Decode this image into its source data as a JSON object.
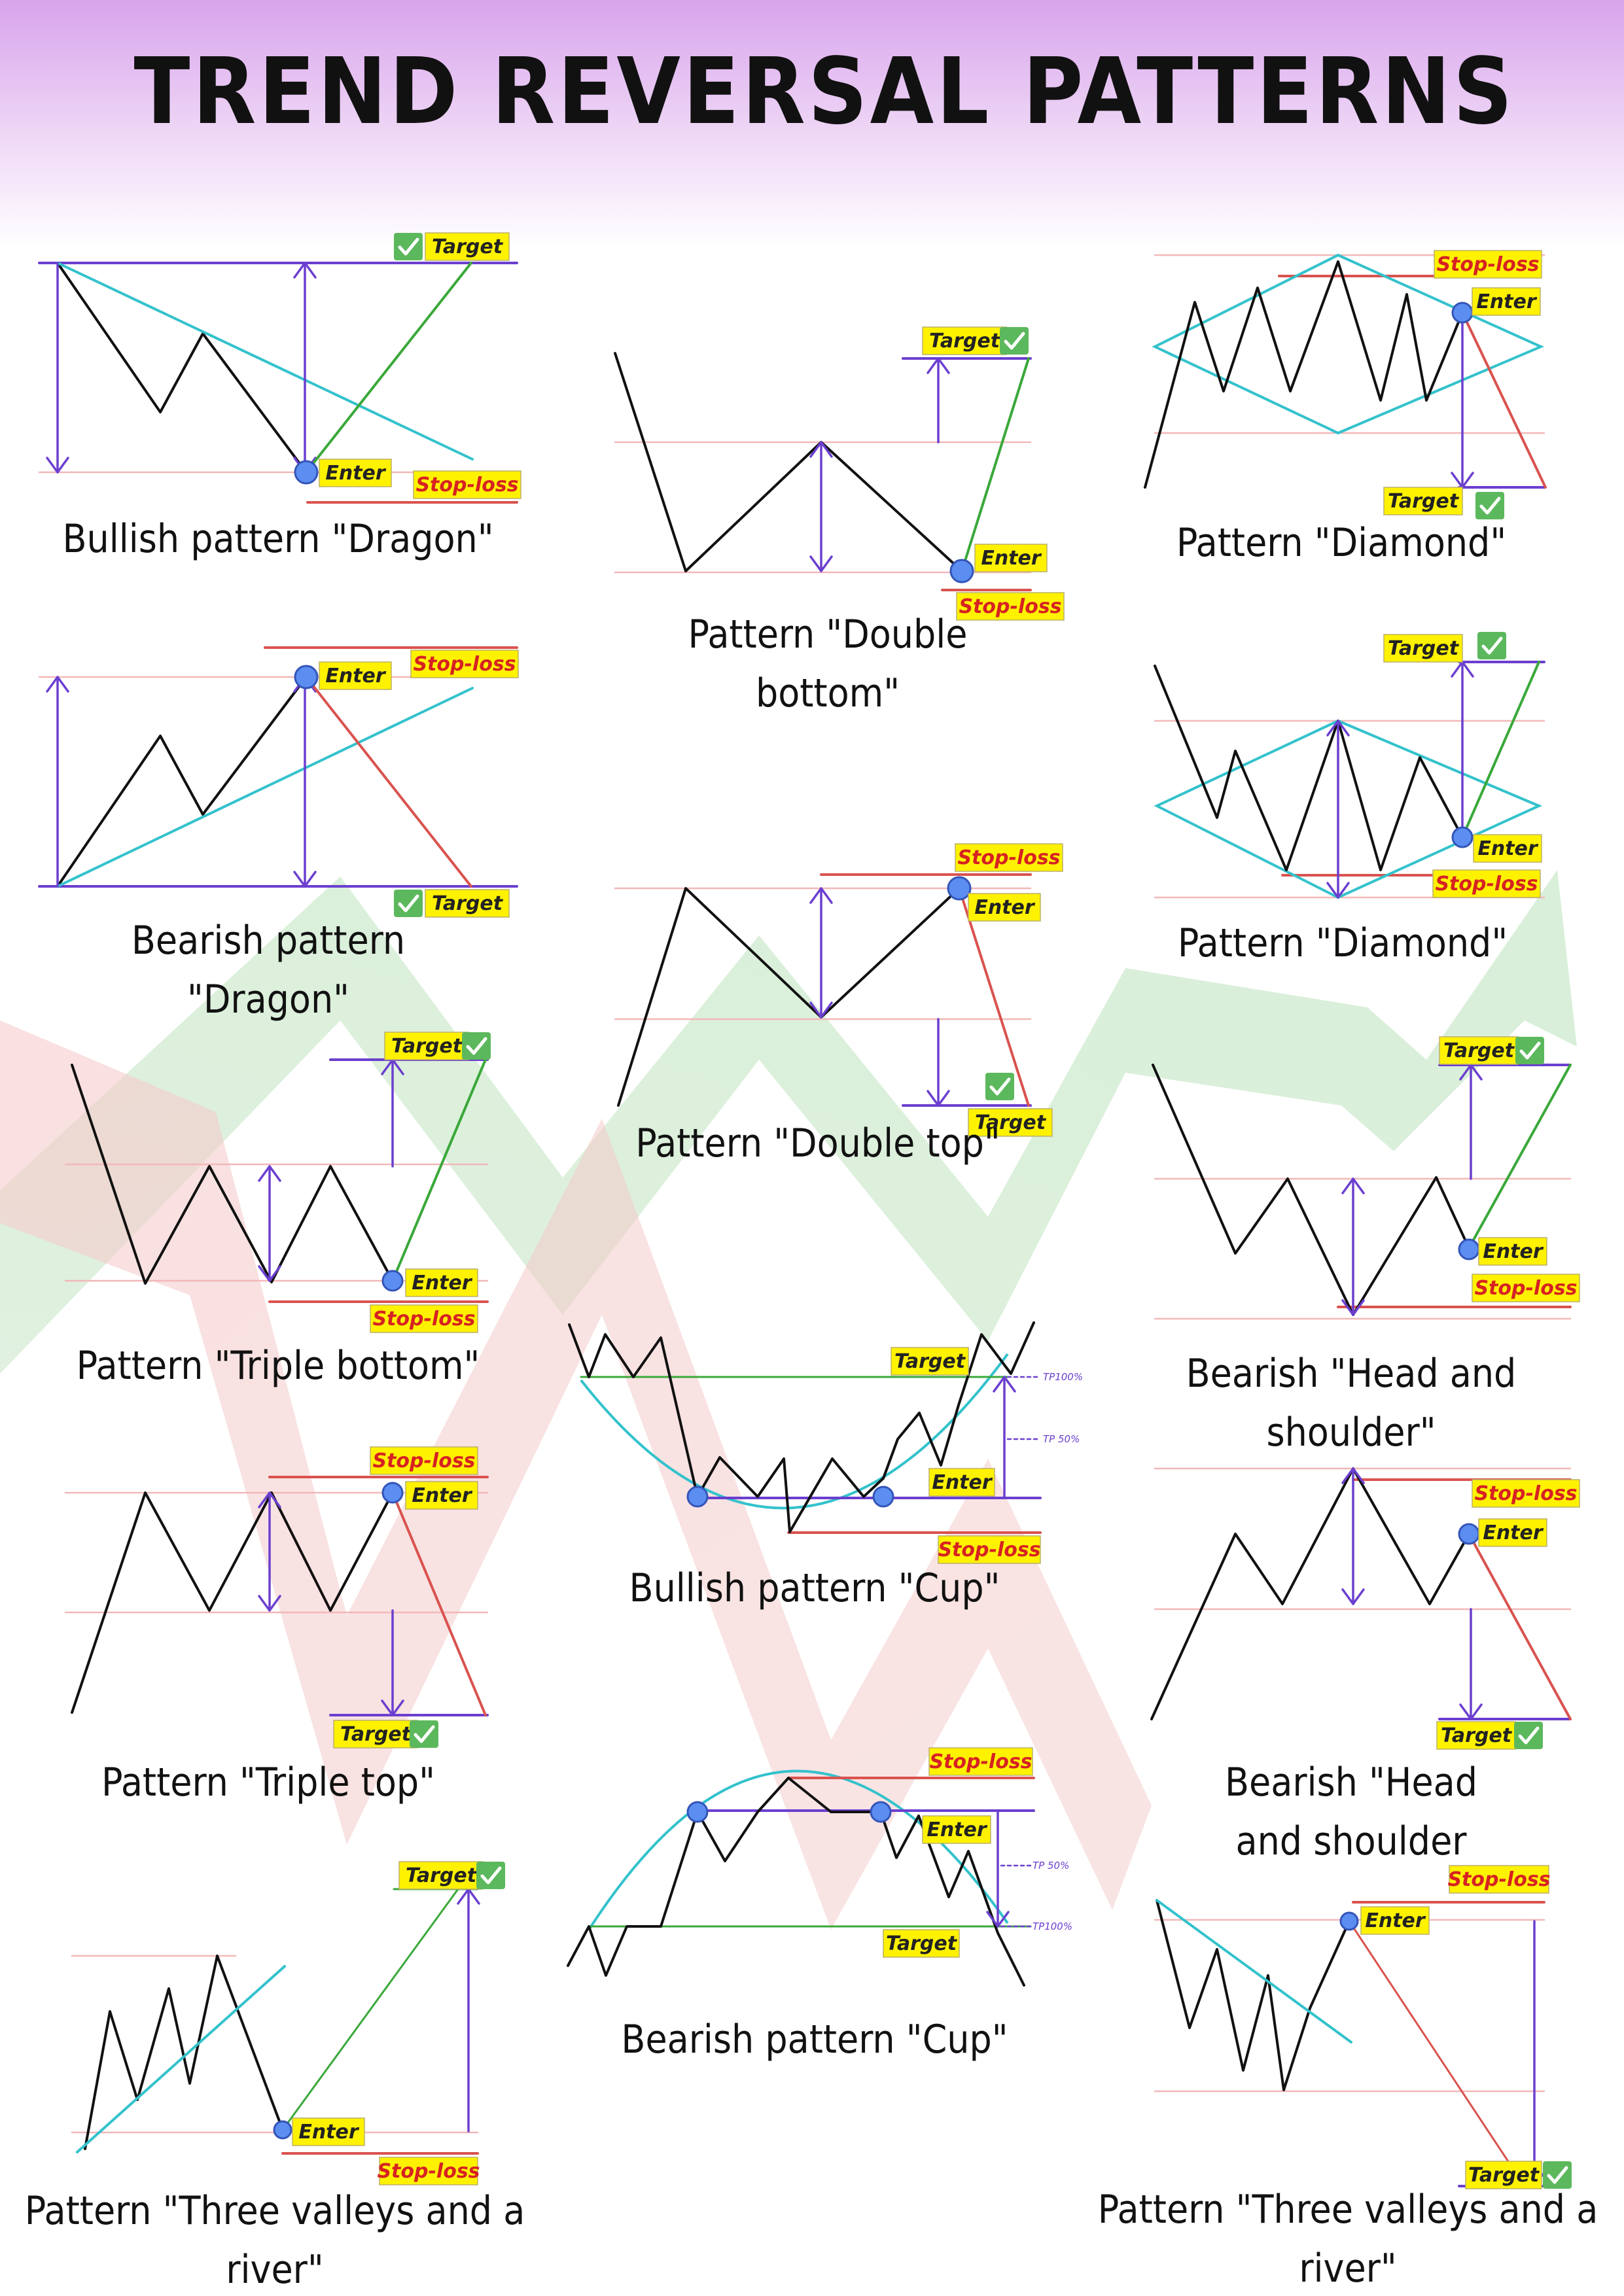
{
  "title": "TREND REVERSAL PATTERNS",
  "labels": {
    "target": "Target",
    "enter": "Enter",
    "stop_loss": "Stop-loss",
    "tp100": "TP100%",
    "tp50": "TP 50%"
  },
  "captions": {
    "dragon_bull": [
      "Bullish pattern \"Dragon\""
    ],
    "dragon_bear": [
      "Bearish pattern",
      "\"Dragon\""
    ],
    "triple_bottom": [
      "Pattern \"Triple bottom\""
    ],
    "triple_top": [
      "Pattern \"Triple top\""
    ],
    "three_valleys_bull": [
      "Pattern \"Three valleys and a",
      "river\""
    ],
    "double_bottom": [
      "Pattern \"Double",
      "bottom\""
    ],
    "double_top": [
      "Pattern \"Double top\""
    ],
    "cup_bull": [
      "Bullish pattern \"Cup\""
    ],
    "cup_bear": [
      "Bearish pattern \"Cup\""
    ],
    "diamond_bear": [
      "Pattern \"Diamond\""
    ],
    "diamond_bull": [
      "Pattern \"Diamond\""
    ],
    "hs_inverse": [
      "Bearish \"Head and",
      "shoulder\""
    ],
    "hs": [
      "Bearish \"Head",
      "and shoulder"
    ],
    "three_valleys_bear": [
      "Pattern \"Three valleys and a",
      "river\""
    ]
  },
  "colors": {
    "price": "#111111",
    "measure": "#6b3fcf",
    "trend": "#33c2cc",
    "target_path": "#3aa83a",
    "stop_path": "#d9534f",
    "level": "#f2b8b8",
    "tag_fill": "#fff200",
    "check": "#5cb85c",
    "title_band": "#d9a8ea"
  },
  "icons": [
    "check-icon",
    "entry-point-icon"
  ]
}
